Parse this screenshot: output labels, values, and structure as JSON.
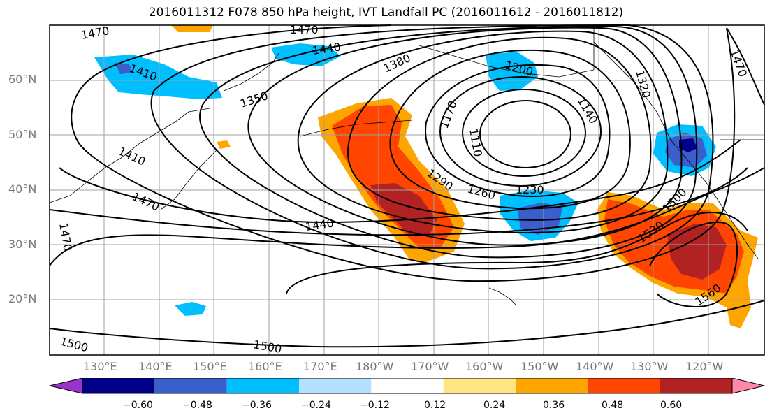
{
  "title": "2016011312 F078 850 hPa height, IVT Landfall PC (2016011612 - 2016011812)",
  "lat_labels": [
    "60°N",
    "50°N",
    "40°N",
    "30°N",
    "20°N"
  ],
  "lon_labels": [
    "130°E",
    "140°E",
    "150°E",
    "160°E",
    "170°E",
    "180°W",
    "170°W",
    "160°W",
    "150°W",
    "140°W",
    "130°W",
    "120°W"
  ],
  "contour_labels": [
    "1470",
    "1470",
    "1440",
    "1410",
    "1380",
    "1350",
    "1320",
    "1470",
    "1200",
    "1170",
    "1140",
    "1110",
    "1410",
    "1470",
    "1290",
    "1260",
    "1230",
    "1500",
    "1530",
    "1440",
    "1470",
    "1500",
    "1500",
    "1560"
  ],
  "colorbar": {
    "ticks": [
      "−0.60",
      "−0.48",
      "−0.36",
      "−0.24",
      "−0.12",
      "0.12",
      "0.24",
      "0.36",
      "0.48",
      "0.60"
    ],
    "colors": [
      "#9933cc",
      "#00008b",
      "#3a5fcd",
      "#00bfff",
      "#b2e2ff",
      "#ffffff",
      "#ffe680",
      "#ffa500",
      "#ff4500",
      "#b22222",
      "#ff88aa"
    ]
  },
  "shading_colors": {
    "blue_light": "#00bfff",
    "blue_mid": "#3a5fcd",
    "blue_dark": "#00008b",
    "yellow": "#ffe680",
    "orange": "#ffa500",
    "orange_red": "#ff4500",
    "dark_red": "#b22222"
  }
}
